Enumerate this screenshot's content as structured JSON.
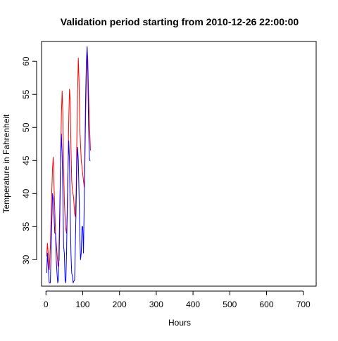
{
  "chart_data": {
    "type": "line",
    "title": "Validation period starting from 2010-12-26 22:00:00",
    "xlabel": "Hours",
    "ylabel": "Temperature in Fahrenheit",
    "xlim": [
      -12,
      735
    ],
    "ylim": [
      26,
      63
    ],
    "x_ticks": [
      0,
      100,
      200,
      300,
      400,
      500,
      600,
      700
    ],
    "y_ticks": [
      30,
      35,
      40,
      45,
      50,
      55,
      60
    ],
    "grid": false,
    "legend": "none",
    "series": [
      {
        "color": "#ff0000",
        "points": [
          [
            2,
            30.5
          ],
          [
            4,
            32.5
          ],
          [
            6,
            31
          ],
          [
            9,
            28.5
          ],
          [
            12,
            32
          ],
          [
            15,
            39
          ],
          [
            18,
            44
          ],
          [
            20,
            45.5
          ],
          [
            22,
            41
          ],
          [
            26,
            34
          ],
          [
            30,
            31
          ],
          [
            33,
            29
          ],
          [
            36,
            30
          ],
          [
            38,
            37
          ],
          [
            40,
            46
          ],
          [
            42,
            52
          ],
          [
            44,
            55.5
          ],
          [
            46,
            52
          ],
          [
            48,
            44
          ],
          [
            50,
            39
          ],
          [
            53,
            35
          ],
          [
            56,
            34
          ],
          [
            58,
            37
          ],
          [
            60,
            44
          ],
          [
            62,
            51
          ],
          [
            64,
            55.8
          ],
          [
            66,
            54
          ],
          [
            68,
            47
          ],
          [
            70,
            42
          ],
          [
            72,
            40.5
          ],
          [
            75,
            39.5
          ],
          [
            78,
            37
          ],
          [
            80,
            36.5
          ],
          [
            82,
            40
          ],
          [
            84,
            48
          ],
          [
            86,
            55
          ],
          [
            88,
            60.5
          ],
          [
            90,
            57
          ],
          [
            92,
            50
          ],
          [
            96,
            45
          ],
          [
            100,
            43
          ],
          [
            104,
            41
          ],
          [
            106,
            45
          ],
          [
            108,
            52
          ],
          [
            110,
            58
          ],
          [
            112,
            62
          ],
          [
            114,
            60
          ],
          [
            116,
            55
          ],
          [
            118,
            51
          ],
          [
            120,
            48
          ],
          [
            121,
            46.5
          ]
        ]
      },
      {
        "color": "#0000ff",
        "points": [
          [
            2,
            28
          ],
          [
            4,
            31
          ],
          [
            6,
            29
          ],
          [
            9,
            26.5
          ],
          [
            12,
            26.5
          ],
          [
            15,
            34
          ],
          [
            18,
            40
          ],
          [
            20,
            39
          ],
          [
            24,
            34
          ],
          [
            26,
            34
          ],
          [
            28,
            30
          ],
          [
            30,
            28
          ],
          [
            32,
            26.5
          ],
          [
            34,
            27
          ],
          [
            38,
            39
          ],
          [
            40,
            45
          ],
          [
            42,
            49
          ],
          [
            44,
            46
          ],
          [
            46,
            40
          ],
          [
            48,
            32
          ],
          [
            50,
            31
          ],
          [
            52,
            27
          ],
          [
            54,
            26.5
          ],
          [
            56,
            31
          ],
          [
            58,
            38
          ],
          [
            60,
            44
          ],
          [
            62,
            48
          ],
          [
            64,
            45
          ],
          [
            66,
            37
          ],
          [
            68,
            31
          ],
          [
            70,
            28
          ],
          [
            72,
            27.5
          ],
          [
            74,
            26.5
          ],
          [
            78,
            27
          ],
          [
            82,
            38
          ],
          [
            84,
            44
          ],
          [
            86,
            47
          ],
          [
            88,
            45
          ],
          [
            90,
            40
          ],
          [
            92,
            34
          ],
          [
            94,
            30
          ],
          [
            96,
            31
          ],
          [
            98,
            35
          ],
          [
            100,
            35
          ],
          [
            102,
            31
          ],
          [
            104,
            38
          ],
          [
            106,
            47
          ],
          [
            108,
            55
          ],
          [
            110,
            60
          ],
          [
            112,
            62.2
          ],
          [
            114,
            58
          ],
          [
            116,
            50
          ],
          [
            118,
            45.5
          ],
          [
            119,
            45
          ],
          [
            121,
            45
          ]
        ]
      }
    ]
  }
}
